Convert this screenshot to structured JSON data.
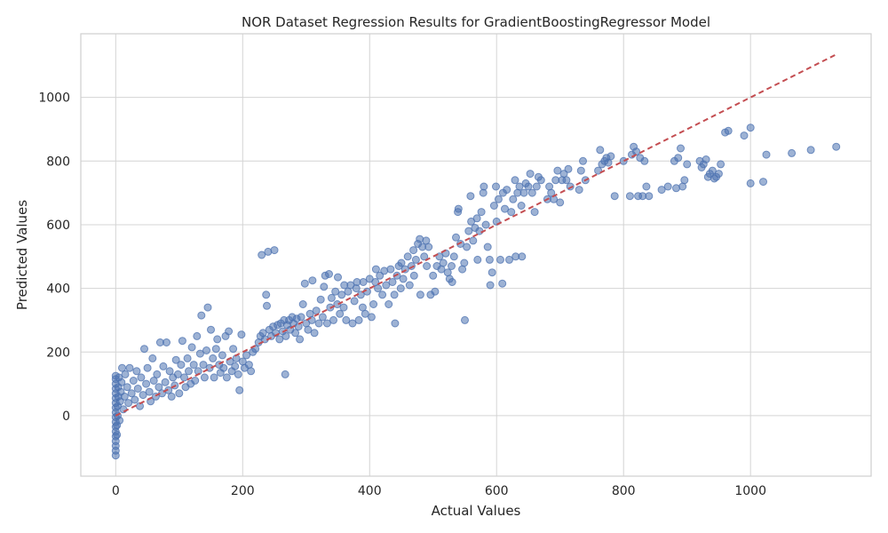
{
  "chart_data": {
    "type": "scatter",
    "title": "NOR Dataset Regression Results for GradientBoostingRegressor Model",
    "xlabel": "Actual Values",
    "ylabel": "Predicted Values",
    "xlim": [
      -55,
      1190
    ],
    "ylim": [
      -190,
      1200
    ],
    "xticks": [
      0,
      200,
      400,
      600,
      800,
      1000
    ],
    "yticks": [
      0,
      200,
      400,
      600,
      800,
      1000
    ],
    "xtick_labels": [
      "0",
      "200",
      "400",
      "600",
      "800",
      "1000"
    ],
    "ytick_labels": [
      "0",
      "200",
      "400",
      "600",
      "800",
      "1000"
    ],
    "grid": true,
    "colors": {
      "points": "#4c72b0",
      "reference_line": "#c44e52"
    },
    "reference_line": {
      "x": [
        0,
        1135
      ],
      "y": [
        0,
        1135
      ],
      "style": "dashed"
    },
    "points": [
      [
        0,
        -125
      ],
      [
        0,
        -110
      ],
      [
        0,
        -95
      ],
      [
        0,
        -80
      ],
      [
        0,
        -65
      ],
      [
        0,
        -50
      ],
      [
        0,
        -35
      ],
      [
        0,
        -20
      ],
      [
        0,
        -5
      ],
      [
        0,
        10
      ],
      [
        0,
        25
      ],
      [
        0,
        40
      ],
      [
        0,
        55
      ],
      [
        0,
        70
      ],
      [
        0,
        85
      ],
      [
        0,
        100
      ],
      [
        0,
        115
      ],
      [
        0,
        125
      ],
      [
        2,
        -60
      ],
      [
        2,
        -30
      ],
      [
        3,
        0
      ],
      [
        3,
        30
      ],
      [
        4,
        60
      ],
      [
        4,
        90
      ],
      [
        5,
        120
      ],
      [
        6,
        -15
      ],
      [
        7,
        45
      ],
      [
        8,
        75
      ],
      [
        9,
        105
      ],
      [
        10,
        150
      ],
      [
        12,
        20
      ],
      [
        14,
        60
      ],
      [
        15,
        130
      ],
      [
        18,
        90
      ],
      [
        20,
        40
      ],
      [
        22,
        150
      ],
      [
        25,
        70
      ],
      [
        28,
        110
      ],
      [
        30,
        50
      ],
      [
        33,
        140
      ],
      [
        35,
        85
      ],
      [
        38,
        30
      ],
      [
        40,
        120
      ],
      [
        43,
        65
      ],
      [
        45,
        210
      ],
      [
        48,
        100
      ],
      [
        50,
        150
      ],
      [
        53,
        75
      ],
      [
        55,
        45
      ],
      [
        58,
        180
      ],
      [
        60,
        110
      ],
      [
        63,
        60
      ],
      [
        65,
        130
      ],
      [
        68,
        90
      ],
      [
        70,
        230
      ],
      [
        73,
        70
      ],
      [
        75,
        155
      ],
      [
        78,
        105
      ],
      [
        80,
        230
      ],
      [
        83,
        80
      ],
      [
        85,
        140
      ],
      [
        88,
        60
      ],
      [
        90,
        120
      ],
      [
        93,
        95
      ],
      [
        95,
        175
      ],
      [
        98,
        130
      ],
      [
        100,
        70
      ],
      [
        103,
        160
      ],
      [
        105,
        235
      ],
      [
        108,
        120
      ],
      [
        110,
        90
      ],
      [
        113,
        180
      ],
      [
        115,
        140
      ],
      [
        118,
        100
      ],
      [
        120,
        215
      ],
      [
        123,
        160
      ],
      [
        125,
        110
      ],
      [
        128,
        250
      ],
      [
        130,
        140
      ],
      [
        133,
        195
      ],
      [
        135,
        315
      ],
      [
        138,
        160
      ],
      [
        140,
        120
      ],
      [
        143,
        205
      ],
      [
        145,
        340
      ],
      [
        148,
        150
      ],
      [
        150,
        270
      ],
      [
        153,
        180
      ],
      [
        155,
        120
      ],
      [
        158,
        210
      ],
      [
        160,
        240
      ],
      [
        163,
        160
      ],
      [
        165,
        135
      ],
      [
        168,
        190
      ],
      [
        170,
        150
      ],
      [
        173,
        250
      ],
      [
        175,
        120
      ],
      [
        178,
        265
      ],
      [
        180,
        170
      ],
      [
        183,
        140
      ],
      [
        185,
        210
      ],
      [
        188,
        155
      ],
      [
        190,
        180
      ],
      [
        193,
        130
      ],
      [
        195,
        80
      ],
      [
        198,
        255
      ],
      [
        200,
        170
      ],
      [
        203,
        150
      ],
      [
        206,
        190
      ],
      [
        210,
        160
      ],
      [
        213,
        140
      ],
      [
        216,
        200
      ],
      [
        220,
        210
      ],
      [
        225,
        230
      ],
      [
        228,
        250
      ],
      [
        230,
        505
      ],
      [
        232,
        260
      ],
      [
        235,
        240
      ],
      [
        237,
        380
      ],
      [
        238,
        345
      ],
      [
        240,
        515
      ],
      [
        242,
        270
      ],
      [
        245,
        250
      ],
      [
        248,
        280
      ],
      [
        250,
        520
      ],
      [
        252,
        260
      ],
      [
        255,
        285
      ],
      [
        258,
        240
      ],
      [
        260,
        290
      ],
      [
        263,
        265
      ],
      [
        265,
        300
      ],
      [
        267,
        130
      ],
      [
        268,
        250
      ],
      [
        270,
        285
      ],
      [
        273,
        300
      ],
      [
        275,
        270
      ],
      [
        278,
        310
      ],
      [
        280,
        290
      ],
      [
        283,
        260
      ],
      [
        285,
        305
      ],
      [
        288,
        280
      ],
      [
        290,
        240
      ],
      [
        292,
        310
      ],
      [
        295,
        350
      ],
      [
        298,
        415
      ],
      [
        300,
        290
      ],
      [
        303,
        270
      ],
      [
        306,
        320
      ],
      [
        309,
        300
      ],
      [
        310,
        425
      ],
      [
        313,
        260
      ],
      [
        316,
        330
      ],
      [
        320,
        290
      ],
      [
        323,
        365
      ],
      [
        326,
        310
      ],
      [
        328,
        405
      ],
      [
        330,
        440
      ],
      [
        333,
        290
      ],
      [
        336,
        445
      ],
      [
        338,
        340
      ],
      [
        340,
        370
      ],
      [
        343,
        300
      ],
      [
        346,
        390
      ],
      [
        349,
        350
      ],
      [
        350,
        435
      ],
      [
        353,
        320
      ],
      [
        356,
        380
      ],
      [
        359,
        340
      ],
      [
        360,
        410
      ],
      [
        363,
        300
      ],
      [
        366,
        390
      ],
      [
        370,
        410
      ],
      [
        373,
        290
      ],
      [
        376,
        360
      ],
      [
        379,
        400
      ],
      [
        380,
        420
      ],
      [
        383,
        300
      ],
      [
        386,
        380
      ],
      [
        389,
        340
      ],
      [
        390,
        420
      ],
      [
        393,
        320
      ],
      [
        396,
        390
      ],
      [
        400,
        430
      ],
      [
        403,
        310
      ],
      [
        406,
        350
      ],
      [
        409,
        420
      ],
      [
        410,
        460
      ],
      [
        413,
        400
      ],
      [
        416,
        440
      ],
      [
        420,
        380
      ],
      [
        423,
        455
      ],
      [
        426,
        410
      ],
      [
        430,
        350
      ],
      [
        433,
        460
      ],
      [
        436,
        420
      ],
      [
        439,
        380
      ],
      [
        440,
        290
      ],
      [
        443,
        440
      ],
      [
        446,
        470
      ],
      [
        449,
        400
      ],
      [
        450,
        480
      ],
      [
        453,
        430
      ],
      [
        456,
        460
      ],
      [
        460,
        500
      ],
      [
        463,
        410
      ],
      [
        466,
        470
      ],
      [
        469,
        520
      ],
      [
        470,
        440
      ],
      [
        473,
        490
      ],
      [
        476,
        540
      ],
      [
        479,
        555
      ],
      [
        480,
        380
      ],
      [
        483,
        530
      ],
      [
        486,
        500
      ],
      [
        489,
        550
      ],
      [
        490,
        470
      ],
      [
        493,
        530
      ],
      [
        496,
        380
      ],
      [
        500,
        440
      ],
      [
        503,
        390
      ],
      [
        506,
        470
      ],
      [
        510,
        500
      ],
      [
        513,
        460
      ],
      [
        516,
        480
      ],
      [
        520,
        510
      ],
      [
        523,
        450
      ],
      [
        526,
        430
      ],
      [
        529,
        470
      ],
      [
        530,
        420
      ],
      [
        533,
        500
      ],
      [
        536,
        560
      ],
      [
        539,
        640
      ],
      [
        540,
        650
      ],
      [
        543,
        540
      ],
      [
        546,
        460
      ],
      [
        549,
        480
      ],
      [
        550,
        300
      ],
      [
        553,
        530
      ],
      [
        556,
        580
      ],
      [
        559,
        690
      ],
      [
        560,
        610
      ],
      [
        563,
        550
      ],
      [
        566,
        590
      ],
      [
        569,
        620
      ],
      [
        570,
        490
      ],
      [
        573,
        580
      ],
      [
        576,
        640
      ],
      [
        579,
        700
      ],
      [
        580,
        720
      ],
      [
        583,
        600
      ],
      [
        586,
        530
      ],
      [
        589,
        490
      ],
      [
        590,
        410
      ],
      [
        593,
        450
      ],
      [
        596,
        660
      ],
      [
        599,
        720
      ],
      [
        600,
        610
      ],
      [
        603,
        680
      ],
      [
        606,
        490
      ],
      [
        609,
        415
      ],
      [
        610,
        700
      ],
      [
        613,
        650
      ],
      [
        616,
        710
      ],
      [
        620,
        490
      ],
      [
        623,
        640
      ],
      [
        626,
        680
      ],
      [
        629,
        740
      ],
      [
        630,
        500
      ],
      [
        633,
        700
      ],
      [
        636,
        720
      ],
      [
        639,
        660
      ],
      [
        640,
        500
      ],
      [
        643,
        700
      ],
      [
        646,
        730
      ],
      [
        650,
        720
      ],
      [
        653,
        760
      ],
      [
        656,
        700
      ],
      [
        660,
        640
      ],
      [
        663,
        720
      ],
      [
        666,
        750
      ],
      [
        670,
        740
      ],
      [
        680,
        680
      ],
      [
        683,
        720
      ],
      [
        686,
        700
      ],
      [
        690,
        680
      ],
      [
        693,
        740
      ],
      [
        696,
        770
      ],
      [
        700,
        670
      ],
      [
        703,
        740
      ],
      [
        706,
        760
      ],
      [
        710,
        740
      ],
      [
        713,
        775
      ],
      [
        716,
        720
      ],
      [
        730,
        710
      ],
      [
        733,
        770
      ],
      [
        736,
        800
      ],
      [
        740,
        740
      ],
      [
        760,
        770
      ],
      [
        763,
        835
      ],
      [
        766,
        790
      ],
      [
        770,
        800
      ],
      [
        773,
        810
      ],
      [
        776,
        795
      ],
      [
        780,
        815
      ],
      [
        786,
        690
      ],
      [
        800,
        800
      ],
      [
        810,
        690
      ],
      [
        813,
        820
      ],
      [
        816,
        845
      ],
      [
        820,
        830
      ],
      [
        823,
        690
      ],
      [
        826,
        810
      ],
      [
        830,
        690
      ],
      [
        833,
        800
      ],
      [
        836,
        720
      ],
      [
        840,
        690
      ],
      [
        860,
        710
      ],
      [
        870,
        720
      ],
      [
        880,
        800
      ],
      [
        883,
        715
      ],
      [
        886,
        810
      ],
      [
        890,
        840
      ],
      [
        893,
        720
      ],
      [
        896,
        740
      ],
      [
        900,
        790
      ],
      [
        920,
        800
      ],
      [
        923,
        780
      ],
      [
        926,
        790
      ],
      [
        930,
        805
      ],
      [
        933,
        750
      ],
      [
        936,
        760
      ],
      [
        940,
        770
      ],
      [
        943,
        745
      ],
      [
        946,
        750
      ],
      [
        950,
        760
      ],
      [
        953,
        790
      ],
      [
        960,
        890
      ],
      [
        965,
        895
      ],
      [
        990,
        880
      ],
      [
        1000,
        905
      ],
      [
        1000,
        730
      ],
      [
        1020,
        735
      ],
      [
        1025,
        820
      ],
      [
        1065,
        825
      ],
      [
        1095,
        835
      ],
      [
        1135,
        845
      ]
    ]
  }
}
